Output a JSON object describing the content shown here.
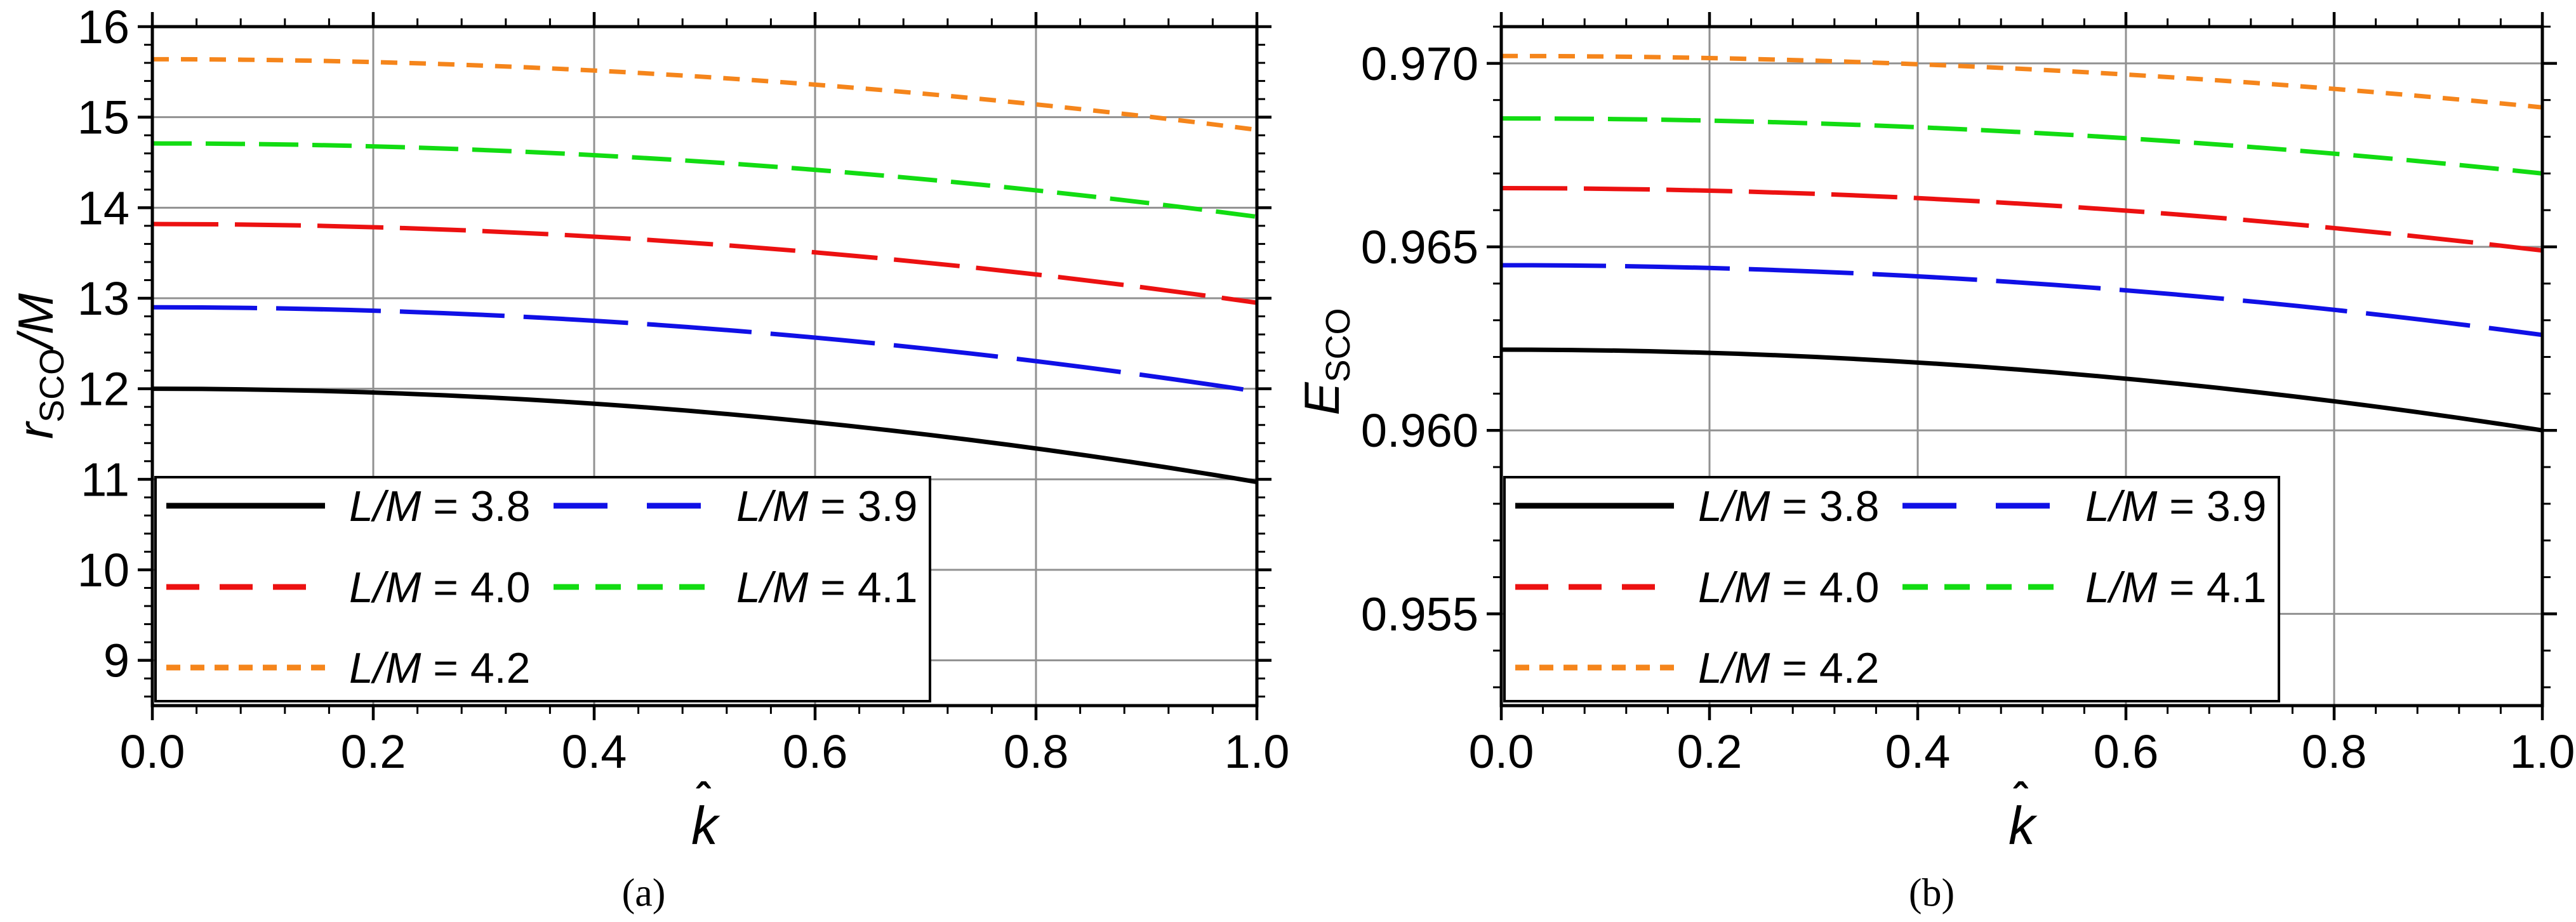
{
  "figure": {
    "background": "#ffffff",
    "grid_color": "#919191",
    "frame_color": "#000000",
    "captions": {
      "a": "(a)",
      "b": "(b)"
    },
    "axis": {
      "left_y_label": {
        "main": "r",
        "sub": "SCO",
        "suffix": "/M"
      },
      "right_y_label": {
        "main": "E",
        "sub": "SCO",
        "suffix": ""
      },
      "x_label": {
        "main": "k",
        "accent": "ˆ"
      }
    },
    "series_colors": {
      "L/M = 3.8": "#000000",
      "L/M = 3.9": "#1010E6",
      "L/M = 4.0": "#EC1111",
      "L/M = 4.1": "#12DC12",
      "L/M = 4.2": "#F5851B"
    }
  },
  "chart_data": [
    {
      "type": "line",
      "panel": "a",
      "title": "",
      "xlabel": "k̂",
      "ylabel": "r_SCO/M",
      "xlim": [
        0,
        1
      ],
      "ylim": [
        8.5,
        16
      ],
      "grid": true,
      "legend_position": "lower left",
      "x_tick_values": [
        0,
        0.2,
        0.4,
        0.6,
        0.8,
        1.0
      ],
      "x_tick_labels": [
        "0.0",
        "0.2",
        "0.4",
        "0.6",
        "0.8",
        "1.0"
      ],
      "y_tick_values": [
        9,
        10,
        11,
        12,
        13,
        14,
        15,
        16
      ],
      "y_tick_labels": [
        "9",
        "10",
        "11",
        "12",
        "13",
        "14",
        "15",
        "16"
      ],
      "x": [
        0,
        0.2,
        0.4,
        0.6,
        0.8,
        1.0
      ],
      "series": [
        {
          "name": "L/M = 3.8",
          "color": "#000000",
          "dash": "solid",
          "values": [
            12.0,
            11.96,
            11.84,
            11.63,
            11.34,
            10.97
          ]
        },
        {
          "name": "L/M = 3.9",
          "color": "#1010E6",
          "dash": "long-dash",
          "values": [
            12.9,
            12.86,
            12.75,
            12.57,
            12.3,
            11.97
          ]
        },
        {
          "name": "L/M = 4.0",
          "color": "#EC1111",
          "dash": "dash",
          "values": [
            13.82,
            13.78,
            13.68,
            13.51,
            13.26,
            12.95
          ]
        },
        {
          "name": "L/M = 4.1",
          "color": "#12DC12",
          "dash": "medium-dash",
          "values": [
            14.71,
            14.68,
            14.58,
            14.42,
            14.19,
            13.9
          ]
        },
        {
          "name": "L/M = 4.2",
          "color": "#F5851B",
          "dash": "dot",
          "values": [
            15.64,
            15.61,
            15.52,
            15.36,
            15.14,
            14.86
          ]
        }
      ]
    },
    {
      "type": "line",
      "panel": "b",
      "title": "",
      "xlabel": "k̂",
      "ylabel": "E_SCO",
      "xlim": [
        0,
        1
      ],
      "ylim": [
        0.9525,
        0.971
      ],
      "grid": true,
      "legend_position": "lower left",
      "x_tick_values": [
        0,
        0.2,
        0.4,
        0.6,
        0.8,
        1.0
      ],
      "x_tick_labels": [
        "0.0",
        "0.2",
        "0.4",
        "0.6",
        "0.8",
        "1.0"
      ],
      "y_tick_values": [
        0.955,
        0.96,
        0.965,
        0.97
      ],
      "y_tick_labels": [
        "0.955",
        "0.960",
        "0.965",
        "0.970"
      ],
      "x": [
        0,
        0.2,
        0.4,
        0.6,
        0.8,
        1.0
      ],
      "series": [
        {
          "name": "L/M = 3.8",
          "color": "#000000",
          "dash": "solid",
          "values": [
            0.9622,
            0.9621,
            0.9618,
            0.9614,
            0.9608,
            0.96
          ]
        },
        {
          "name": "L/M = 3.9",
          "color": "#1010E6",
          "dash": "long-dash",
          "values": [
            0.9645,
            0.9644,
            0.9642,
            0.9638,
            0.9633,
            0.9626
          ]
        },
        {
          "name": "L/M = 4.0",
          "color": "#EC1111",
          "dash": "dash",
          "values": [
            0.9666,
            0.9665,
            0.9663,
            0.966,
            0.9655,
            0.9649
          ]
        },
        {
          "name": "L/M = 4.1",
          "color": "#12DC12",
          "dash": "medium-dash",
          "values": [
            0.9685,
            0.9684,
            0.9683,
            0.968,
            0.9675,
            0.967
          ]
        },
        {
          "name": "L/M = 4.2",
          "color": "#F5851B",
          "dash": "dot",
          "values": [
            0.9702,
            0.9701,
            0.97,
            0.9697,
            0.9693,
            0.9688
          ]
        }
      ]
    }
  ]
}
